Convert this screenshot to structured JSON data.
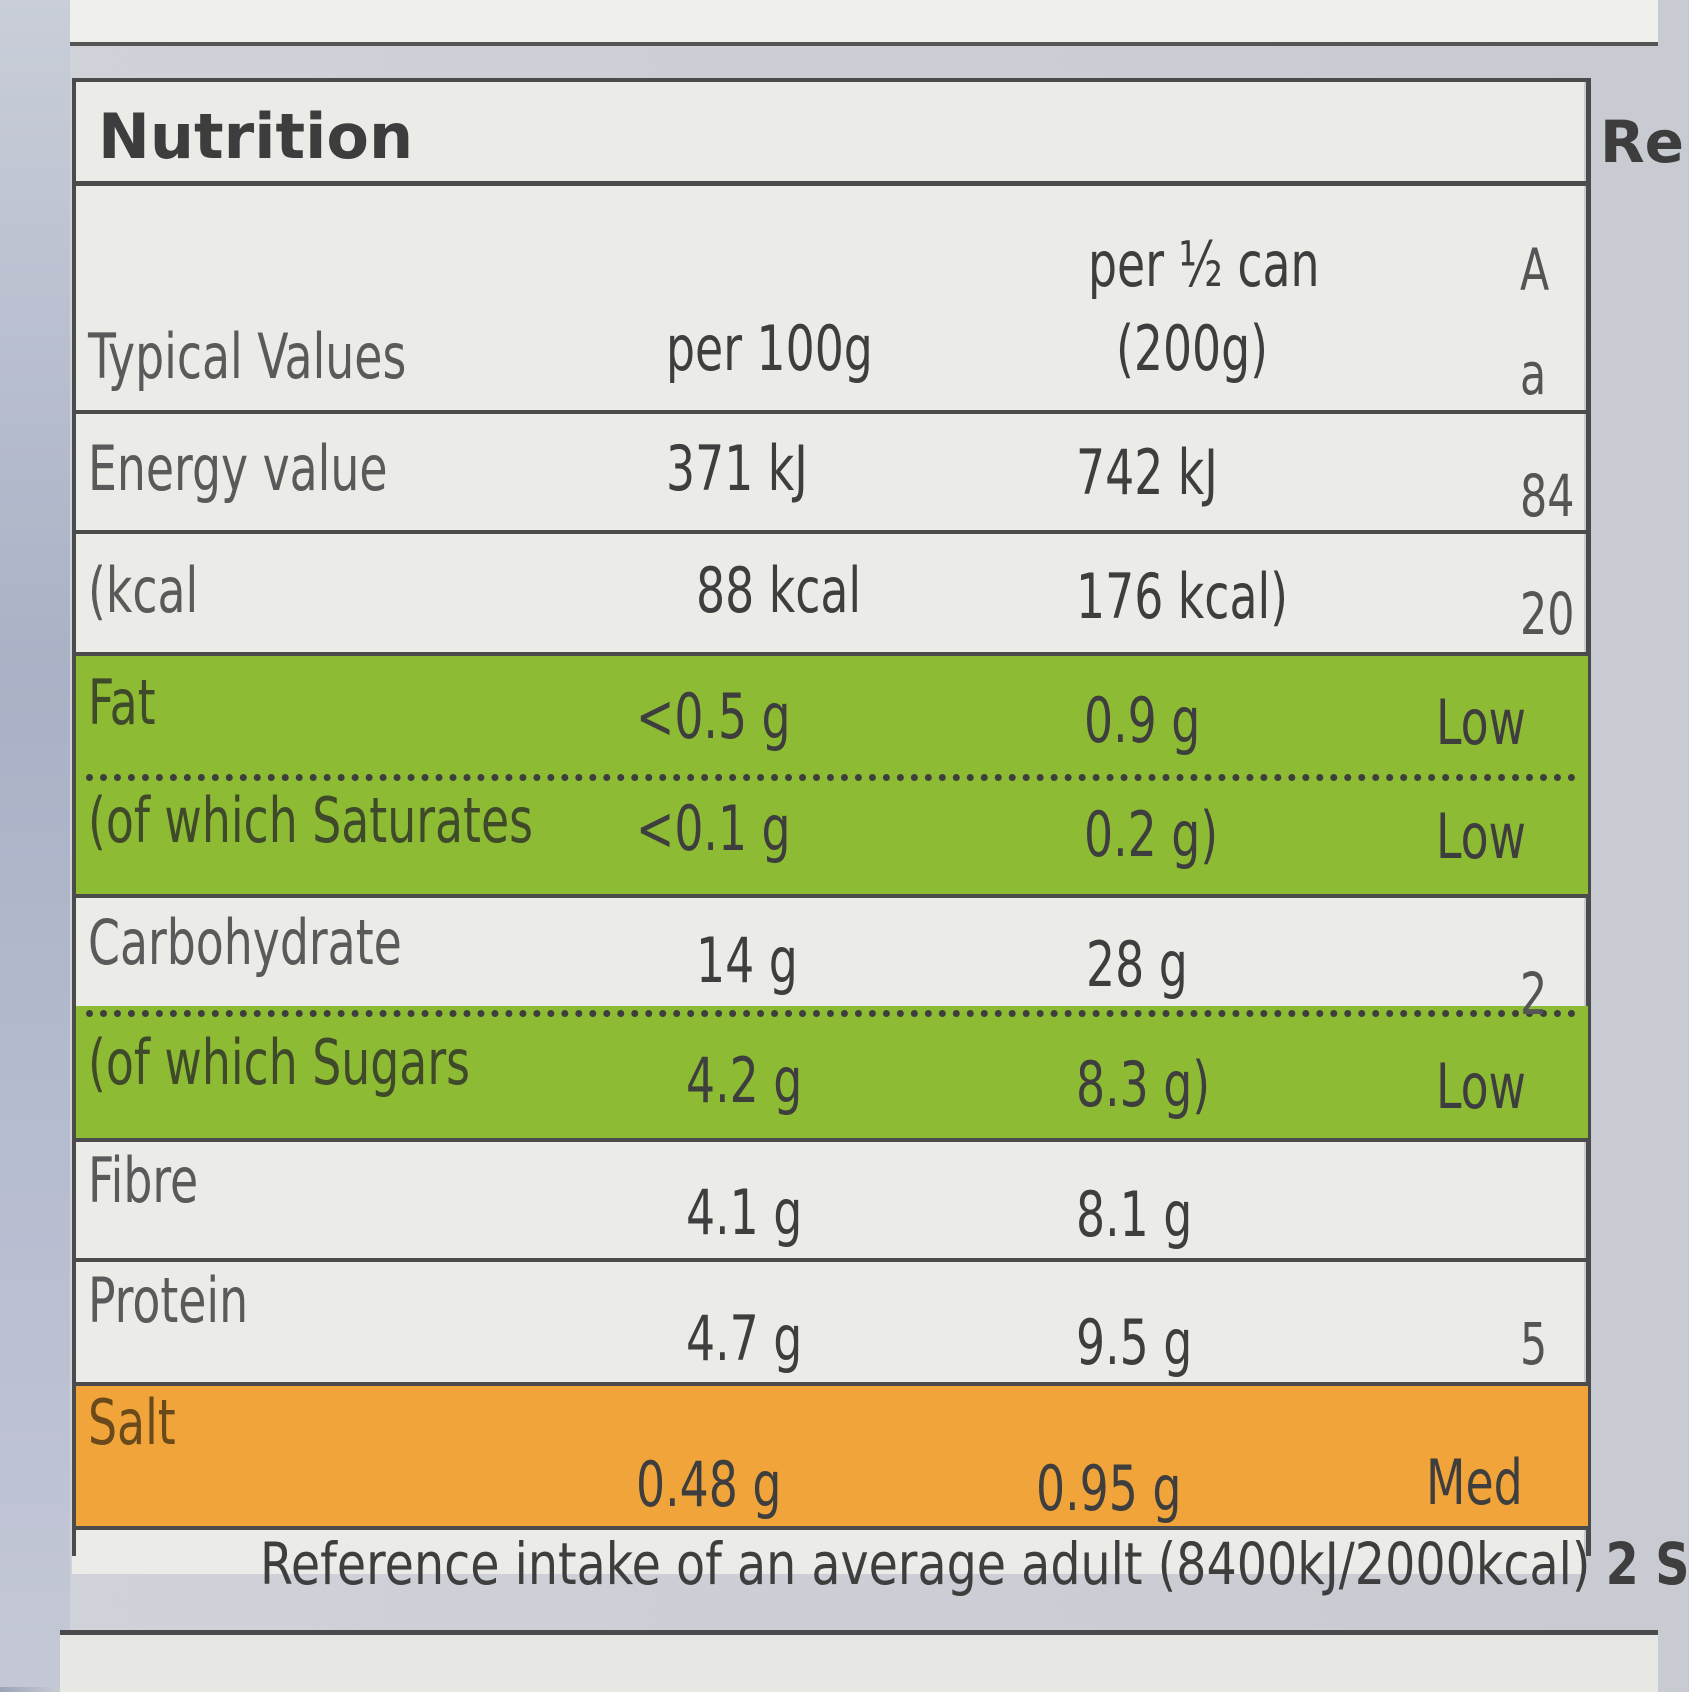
{
  "title": "Nutrition",
  "right_header": "Re",
  "headers": {
    "typical_values": "Typical Values",
    "per100": "per 100g",
    "perhalf_line1": "per ½ can",
    "perhalf_line2": "(200g)"
  },
  "rows": [
    {
      "label": "Energy value",
      "per100": "371 kJ",
      "perhalf": "742 kJ",
      "flag": ""
    },
    {
      "label": "(kcal",
      "per100": "88 kcal",
      "perhalf": "176 kcal)",
      "flag": ""
    },
    {
      "label": "Fat",
      "per100": "<0.5 g",
      "perhalf": "0.9 g",
      "flag": "Low"
    },
    {
      "label": "(of which Saturates",
      "per100": "<0.1 g",
      "perhalf": "0.2 g)",
      "flag": "Low"
    },
    {
      "label": "Carbohydrate",
      "per100": "14 g",
      "perhalf": "28 g",
      "flag": ""
    },
    {
      "label": "(of which Sugars",
      "per100": "4.2 g",
      "perhalf": "8.3 g)",
      "flag": "Low"
    },
    {
      "label": "Fibre",
      "per100": "4.1 g",
      "perhalf": "8.1 g",
      "flag": ""
    },
    {
      "label": "Protein",
      "per100": "4.7 g",
      "perhalf": "9.5 g",
      "flag": ""
    },
    {
      "label": "Salt",
      "per100": "0.48 g",
      "perhalf": "0.95 g",
      "flag": "Med"
    }
  ],
  "right_partial": [
    "A",
    "a",
    "84",
    "20",
    "2",
    "5"
  ],
  "footer": {
    "text": "Reference intake of an average adult (8400kJ/2000kcal)",
    "bold_tail": "2 S"
  },
  "colors": {
    "low": "#8dbb33",
    "med": "#f0a43a",
    "line": "#4b4b4b"
  }
}
